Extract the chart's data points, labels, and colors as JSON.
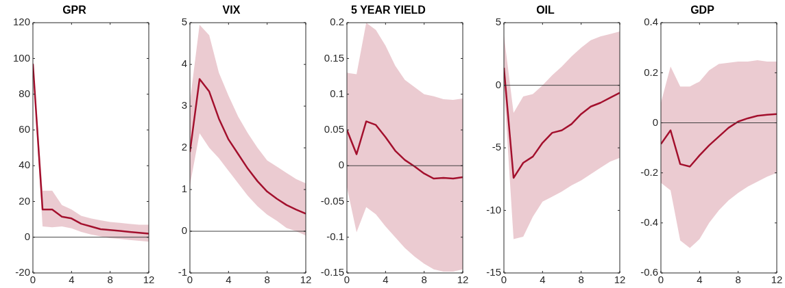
{
  "chart_data": [
    {
      "type": "line",
      "title": "GPR",
      "x": [
        0,
        1,
        2,
        3,
        4,
        5,
        6,
        7,
        8,
        9,
        10,
        11,
        12
      ],
      "xlim": [
        0,
        12
      ],
      "xticks": [
        0,
        4,
        8,
        12
      ],
      "ylim": [
        -20,
        120
      ],
      "yticks": [
        -20,
        0,
        20,
        40,
        60,
        80,
        100,
        120
      ],
      "ref_lines": [
        {
          "axis": "y",
          "value": 0,
          "color": "#404040"
        }
      ],
      "series": [
        {
          "color": "#a3102e",
          "values": [
            97,
            15.5,
            15.5,
            11.5,
            10.5,
            7.5,
            6,
            4.5,
            4,
            3.5,
            3,
            2.5,
            2
          ],
          "lower": [
            96,
            6,
            5.5,
            6,
            5,
            3,
            1.5,
            0.5,
            -0.5,
            -1,
            -1.5,
            -2,
            -2.5
          ],
          "upper": [
            98,
            26,
            26,
            18,
            15.5,
            12,
            10.5,
            9.5,
            8.5,
            8,
            7.5,
            7,
            7
          ]
        }
      ]
    },
    {
      "type": "line",
      "title": "VIX",
      "x": [
        0,
        1,
        2,
        3,
        4,
        5,
        6,
        7,
        8,
        9,
        10,
        11,
        12
      ],
      "xlim": [
        0,
        12
      ],
      "xticks": [
        0,
        4,
        8,
        12
      ],
      "ylim": [
        -1,
        5
      ],
      "yticks": [
        -1,
        0,
        1,
        2,
        3,
        4,
        5
      ],
      "ref_lines": [
        {
          "axis": "y",
          "value": 0,
          "color": "#404040"
        }
      ],
      "series": [
        {
          "color": "#a3102e",
          "values": [
            1.9,
            3.65,
            3.35,
            2.7,
            2.2,
            1.85,
            1.5,
            1.2,
            0.95,
            0.78,
            0.63,
            0.52,
            0.42
          ],
          "lower": [
            1.1,
            2.35,
            2.0,
            1.75,
            1.45,
            1.15,
            0.85,
            0.6,
            0.4,
            0.25,
            0.08,
            0.0,
            -0.1
          ],
          "upper": [
            3.1,
            4.95,
            4.7,
            3.8,
            3.25,
            2.75,
            2.35,
            2.0,
            1.7,
            1.55,
            1.4,
            1.25,
            1.15
          ]
        }
      ]
    },
    {
      "type": "line",
      "title": "5 YEAR YIELD",
      "x": [
        0,
        1,
        2,
        3,
        4,
        5,
        6,
        7,
        8,
        9,
        10,
        11,
        12
      ],
      "xlim": [
        0,
        12
      ],
      "xticks": [
        0,
        4,
        8,
        12
      ],
      "ylim": [
        -0.15,
        0.2
      ],
      "yticks": [
        -0.15,
        -0.1,
        -0.05,
        0,
        0.05,
        0.1,
        0.15,
        0.2
      ],
      "ref_lines": [
        {
          "axis": "y",
          "value": 0,
          "color": "#404040"
        }
      ],
      "series": [
        {
          "color": "#a3102e",
          "values": [
            0.05,
            0.016,
            0.062,
            0.057,
            0.04,
            0.021,
            0.008,
            -0.001,
            -0.011,
            -0.018,
            -0.017,
            -0.018,
            -0.016
          ],
          "lower": [
            -0.03,
            -0.093,
            -0.058,
            -0.068,
            -0.085,
            -0.1,
            -0.115,
            -0.127,
            -0.137,
            -0.145,
            -0.148,
            -0.148,
            -0.145
          ],
          "upper": [
            0.13,
            0.128,
            0.2,
            0.19,
            0.168,
            0.14,
            0.12,
            0.11,
            0.1,
            0.097,
            0.093,
            0.092,
            0.094
          ]
        }
      ]
    },
    {
      "type": "line",
      "title": "OIL",
      "x": [
        0,
        1,
        2,
        3,
        4,
        5,
        6,
        7,
        8,
        9,
        10,
        11,
        12
      ],
      "xlim": [
        0,
        12
      ],
      "xticks": [
        0,
        4,
        8,
        12
      ],
      "ylim": [
        -15,
        5
      ],
      "yticks": [
        -15,
        -10,
        -5,
        0,
        5
      ],
      "ref_lines": [
        {
          "axis": "y",
          "value": 0,
          "color": "#404040"
        }
      ],
      "series": [
        {
          "color": "#a3102e",
          "values": [
            1.4,
            -7.4,
            -6.2,
            -5.7,
            -4.6,
            -3.8,
            -3.6,
            -3.1,
            -2.3,
            -1.7,
            -1.4,
            -1.0,
            -0.6
          ],
          "lower": [
            0,
            -12.3,
            -12.1,
            -10.5,
            -9.3,
            -8.9,
            -8.5,
            -8.0,
            -7.6,
            -7.1,
            -6.6,
            -6.1,
            -5.8
          ],
          "upper": [
            4,
            -2.2,
            -0.9,
            -0.7,
            0,
            0.8,
            1.5,
            2.3,
            3.0,
            3.6,
            3.9,
            4.1,
            4.3
          ]
        }
      ]
    },
    {
      "type": "line",
      "title": "GDP",
      "x": [
        0,
        1,
        2,
        3,
        4,
        5,
        6,
        7,
        8,
        9,
        10,
        11,
        12
      ],
      "xlim": [
        0,
        12
      ],
      "xticks": [
        0,
        4,
        8,
        12
      ],
      "ylim": [
        -0.6,
        0.4
      ],
      "yticks": [
        -0.6,
        -0.4,
        -0.2,
        0,
        0.2,
        0.4
      ],
      "ref_lines": [
        {
          "axis": "y",
          "value": 0,
          "color": "#404040"
        }
      ],
      "series": [
        {
          "color": "#a3102e",
          "values": [
            -0.085,
            -0.03,
            -0.165,
            -0.175,
            -0.13,
            -0.09,
            -0.055,
            -0.02,
            0.005,
            0.018,
            0.028,
            0.032,
            0.035
          ],
          "lower": [
            -0.24,
            -0.27,
            -0.47,
            -0.5,
            -0.465,
            -0.4,
            -0.35,
            -0.31,
            -0.28,
            -0.255,
            -0.235,
            -0.215,
            -0.2
          ],
          "upper": [
            0.08,
            0.225,
            0.145,
            0.145,
            0.165,
            0.21,
            0.235,
            0.24,
            0.245,
            0.245,
            0.25,
            0.245,
            0.245
          ]
        }
      ]
    }
  ]
}
